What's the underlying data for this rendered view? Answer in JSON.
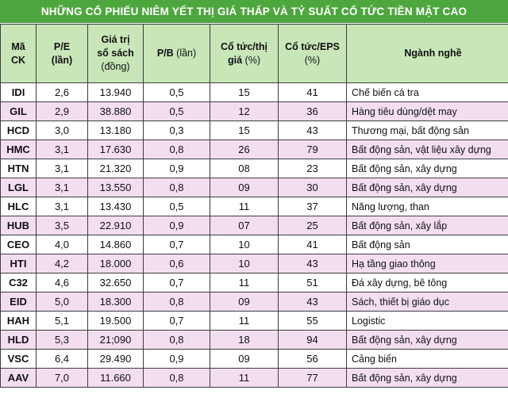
{
  "title": "NHỮNG CỔ PHIẾU NIÊM YẾT THỊ GIÁ THẤP VÀ TỶ SUẤT CỔ TỨC TIỀN MẶT CAO",
  "colors": {
    "title_bg": "#4ea73e",
    "header_bg": "#c8e6b8",
    "row_alt": "#f3def0"
  },
  "headers": {
    "code": {
      "line1": "Mã",
      "line2": "CK"
    },
    "pe": {
      "line1": "P/E",
      "line2": "(lần)"
    },
    "book": {
      "line1": "Giá trị",
      "line2": "sổ sách",
      "unit": "(đồng)"
    },
    "pb": {
      "label": "P/B",
      "unit": "(lần)"
    },
    "yield": {
      "line1": "Cổ tức/thị",
      "line2": "giá",
      "unit": "(%)"
    },
    "eps": {
      "line1": "Cổ tức/EPS",
      "unit": "(%)"
    },
    "sector": "Ngành nghề"
  },
  "rows": [
    {
      "code": "IDI",
      "pe": "2,6",
      "book": "13.940",
      "pb": "0,5",
      "yield": "15",
      "eps": "41",
      "sector": "Chế biến cá tra"
    },
    {
      "code": "GIL",
      "pe": "2,9",
      "book": "38.880",
      "pb": "0,5",
      "yield": "12",
      "eps": "36",
      "sector": "Hàng tiêu dùng/dệt may"
    },
    {
      "code": "HCD",
      "pe": "3,0",
      "book": "13.180",
      "pb": "0,3",
      "yield": "15",
      "eps": "43",
      "sector": "Thương mại, bất động sản"
    },
    {
      "code": "HMC",
      "pe": "3,1",
      "book": "17.630",
      "pb": "0,8",
      "yield": "26",
      "eps": "79",
      "sector": "Bất động sản, vật liệu xây dựng"
    },
    {
      "code": "HTN",
      "pe": "3,1",
      "book": "21.320",
      "pb": "0,9",
      "yield": "08",
      "eps": "23",
      "sector": "Bất động sản, xây dựng"
    },
    {
      "code": "LGL",
      "pe": "3,1",
      "book": "13.550",
      "pb": "0,8",
      "yield": "09",
      "eps": "30",
      "sector": "Bất động sản, xây dựng"
    },
    {
      "code": "HLC",
      "pe": "3,1",
      "book": "13.430",
      "pb": "0,5",
      "yield": "11",
      "eps": "37",
      "sector": "Năng lượng, than"
    },
    {
      "code": "HUB",
      "pe": "3,5",
      "book": "22.910",
      "pb": "0,9",
      "yield": "07",
      "eps": "25",
      "sector": "Bất động sản, xây lắp"
    },
    {
      "code": "CEO",
      "pe": "4,0",
      "book": "14.860",
      "pb": "0,7",
      "yield": "10",
      "eps": "41",
      "sector": "Bất động sản"
    },
    {
      "code": "HTI",
      "pe": "4,2",
      "book": "18.000",
      "pb": "0,6",
      "yield": "10",
      "eps": "43",
      "sector": "Hạ tầng giao thông"
    },
    {
      "code": "C32",
      "pe": "4,6",
      "book": "32.650",
      "pb": "0,7",
      "yield": "11",
      "eps": "51",
      "sector": "Đá xây dựng, bê tông"
    },
    {
      "code": "EID",
      "pe": "5,0",
      "book": "18.300",
      "pb": "0,8",
      "yield": "09",
      "eps": "43",
      "sector": "Sách, thiết bị giáo dục"
    },
    {
      "code": "HAH",
      "pe": "5,1",
      "book": "19.500",
      "pb": "0,7",
      "yield": "11",
      "eps": "55",
      "sector": "Logistic"
    },
    {
      "code": "HLD",
      "pe": "5,3",
      "book": "21;090",
      "pb": "0,8",
      "yield": "18",
      "eps": "94",
      "sector": "Bất động sản, xây dựng"
    },
    {
      "code": "VSC",
      "pe": "6,4",
      "book": "29.490",
      "pb": "0,9",
      "yield": "09",
      "eps": "56",
      "sector": "Cảng biển"
    },
    {
      "code": "AAV",
      "pe": "7,0",
      "book": "11.660",
      "pb": "0,8",
      "yield": "11",
      "eps": "77",
      "sector": "Bất động sản, xây dựng"
    }
  ]
}
